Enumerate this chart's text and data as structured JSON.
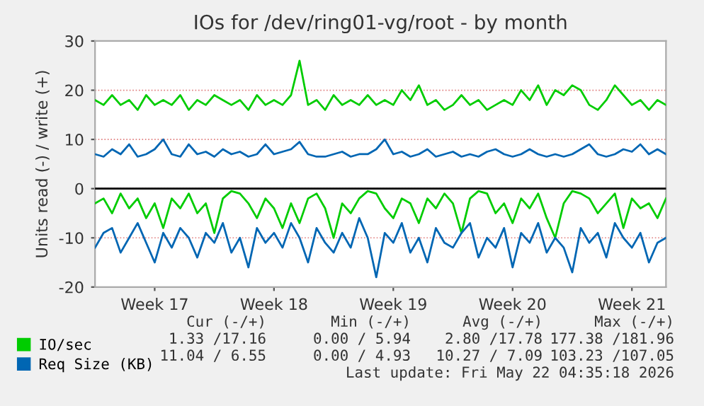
{
  "chart_data": {
    "type": "line",
    "title": "IOs for /dev/ring01-vg/root - by month",
    "ylabel": "Units read (-) / write (+)",
    "categories": [
      null,
      null,
      null,
      null,
      null,
      null,
      null,
      "Week 17",
      null,
      null,
      null,
      null,
      null,
      null,
      null,
      null,
      null,
      null,
      null,
      null,
      null,
      "Week 18",
      null,
      null,
      null,
      null,
      null,
      null,
      null,
      null,
      null,
      null,
      null,
      null,
      null,
      "Week 19",
      null,
      null,
      null,
      null,
      null,
      null,
      null,
      null,
      null,
      null,
      null,
      null,
      null,
      "Week 20",
      null,
      null,
      null,
      null,
      null,
      null,
      null,
      null,
      null,
      null,
      null,
      null,
      null,
      "Week 21",
      null,
      null,
      null,
      null
    ],
    "series": [
      {
        "name": "IO/sec",
        "color": "#00cc00",
        "values": [
          18,
          17,
          19,
          17,
          18,
          16,
          19,
          17,
          18,
          17,
          19,
          16,
          18,
          17,
          19,
          18,
          17,
          18,
          16,
          19,
          17,
          18,
          17,
          19,
          26,
          17,
          18,
          16,
          19,
          17,
          18,
          17,
          19,
          17,
          18,
          17,
          20,
          18,
          21,
          17,
          18,
          16,
          17,
          19,
          17,
          18,
          16,
          17,
          18,
          17,
          20,
          18,
          21,
          17,
          20,
          19,
          21,
          20,
          17,
          16,
          18,
          21,
          19,
          17,
          18,
          16,
          18,
          17
        ]
      },
      {
        "color": "#00cc00",
        "values": [
          -3,
          -2,
          -5,
          -1,
          -4,
          -2,
          -6,
          -3,
          -8,
          -2,
          -4,
          -1,
          -5,
          -3,
          -9,
          -2,
          -0.5,
          -1,
          -3,
          -6,
          -2,
          -4,
          -8,
          -3,
          -7,
          -2,
          -1,
          -4,
          -10,
          -3,
          -5,
          -2,
          -0.5,
          -1,
          -4,
          -6,
          -2,
          -3,
          -7,
          -2,
          -4,
          -1,
          -3,
          -9,
          -2,
          -0.5,
          -1,
          -5,
          -3,
          -7,
          -2,
          -4,
          -1,
          -6,
          -10,
          -3,
          -0.5,
          -1,
          -2,
          -5,
          -3,
          -1,
          -8,
          -2,
          -4,
          -3,
          -6,
          -2
        ]
      },
      {
        "name": "Req Size (KB)",
        "color": "#0066b3",
        "values": [
          7,
          6.5,
          8,
          7,
          9,
          6.5,
          7,
          8,
          10,
          7,
          6.5,
          9,
          7,
          7.5,
          6.5,
          8,
          7,
          7.5,
          6.5,
          7,
          9,
          7,
          7.5,
          8,
          9.5,
          7,
          6.5,
          6.5,
          7,
          7.5,
          6.5,
          7,
          7,
          8,
          10,
          7,
          7.5,
          6.5,
          7,
          8,
          6.5,
          7,
          7.5,
          6.5,
          7,
          6.5,
          7.5,
          8,
          7,
          6.5,
          7,
          8,
          7,
          6.5,
          7,
          6.5,
          7,
          8,
          9,
          7,
          6.5,
          7,
          8,
          7.5,
          9,
          7,
          8,
          7
        ]
      },
      {
        "color": "#0066b3",
        "values": [
          -12,
          -9,
          -8,
          -13,
          -10,
          -7,
          -11,
          -15,
          -9,
          -12,
          -8,
          -10,
          -14,
          -9,
          -11,
          -7,
          -13,
          -10,
          -16,
          -8,
          -11,
          -9,
          -12,
          -7,
          -10,
          -15,
          -8,
          -11,
          -13,
          -9,
          -12,
          -6,
          -10,
          -18,
          -9,
          -11,
          -7,
          -13,
          -10,
          -15,
          -8,
          -11,
          -12,
          -9,
          -7,
          -14,
          -10,
          -12,
          -8,
          -16,
          -9,
          -11,
          -7,
          -13,
          -10,
          -12,
          -17,
          -8,
          -11,
          -9,
          -14,
          -7,
          -10,
          -12,
          -9,
          -15,
          -11,
          -10
        ]
      }
    ],
    "ylim": [
      -20,
      30
    ],
    "yticks": [
      -20,
      -10,
      0,
      10,
      20,
      30
    ],
    "ref_lines": [
      {
        "axis": "y",
        "value": 0,
        "color": "#000000"
      }
    ],
    "grid": "y",
    "legend": "bottom",
    "marker": "none",
    "line_style": "solid",
    "annotations": [
      "Cur (-/+)",
      "Min (-/+)",
      "Avg (-/+)",
      "Max (-/+)",
      "1.33 /17.16",
      "0.00 / 5.94",
      "2.80 /17.78",
      "177.38 /181.96",
      "11.04 / 6.55",
      "0.00 / 4.93",
      "10.27 / 7.09",
      "103.23 /107.05",
      "Last update: Fri May 22 04:35:18 2026"
    ]
  }
}
